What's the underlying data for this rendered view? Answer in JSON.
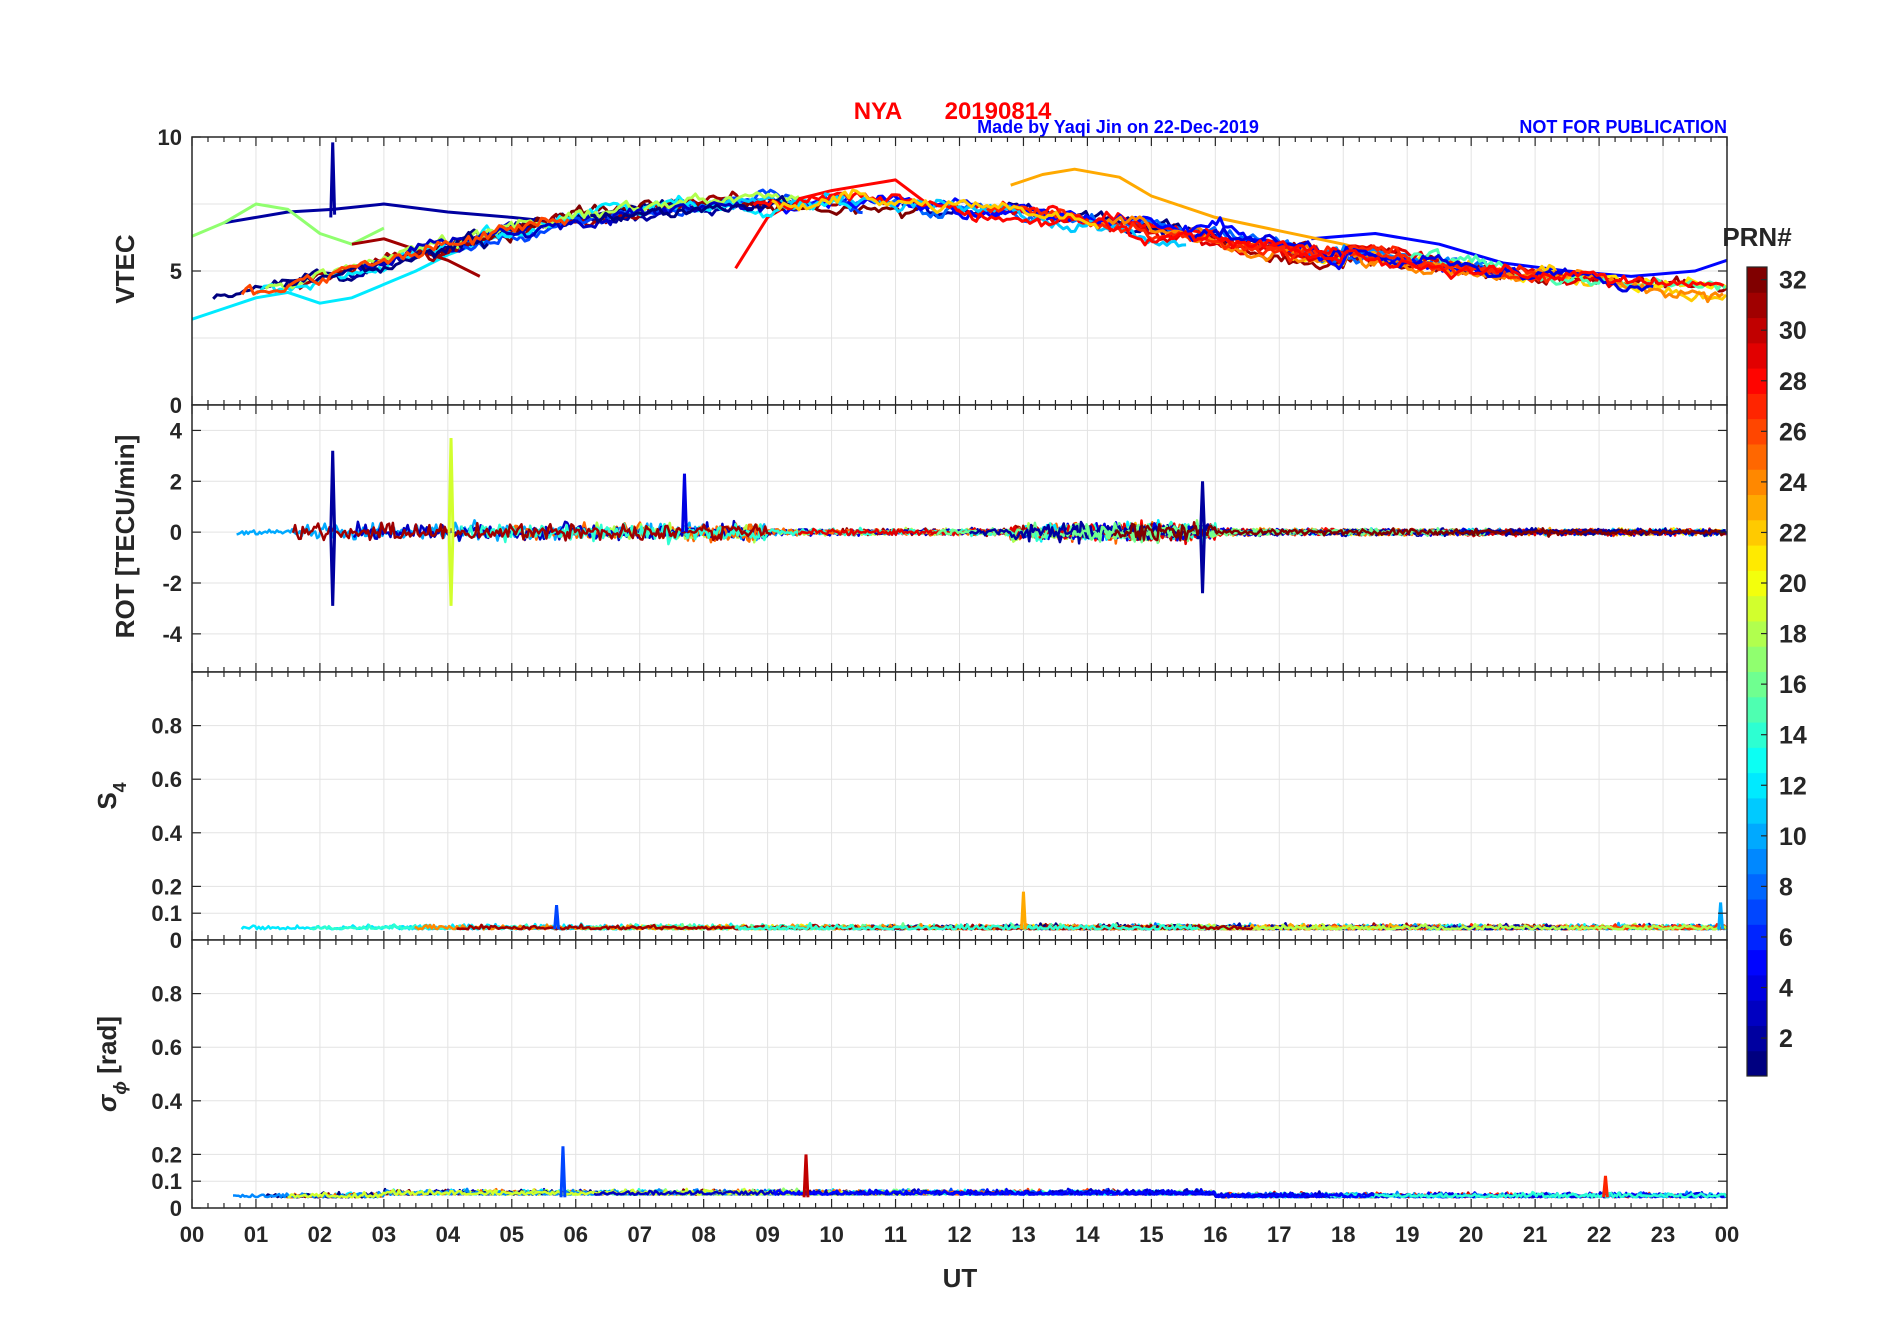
{
  "header": {
    "station": "NYA",
    "date": "20190814",
    "credit": "Made by Yaqi Jin on 22-Dec-2019",
    "notice": "NOT FOR PUBLICATION"
  },
  "colors": {
    "title": "#ff0000",
    "notice": "#0000ff",
    "grid": "#e3e3e3",
    "axis": "#262626"
  },
  "chart_data": {
    "type": "line",
    "x_axis": {
      "label": "UT",
      "range": [
        0,
        24
      ],
      "ticks": [
        0,
        1,
        2,
        3,
        4,
        5,
        6,
        7,
        8,
        9,
        10,
        11,
        12,
        13,
        14,
        15,
        16,
        17,
        18,
        19,
        20,
        21,
        22,
        23,
        24
      ],
      "tick_labels": [
        "00",
        "01",
        "02",
        "03",
        "04",
        "05",
        "06",
        "07",
        "08",
        "09",
        "10",
        "11",
        "12",
        "13",
        "14",
        "15",
        "16",
        "17",
        "18",
        "19",
        "20",
        "21",
        "22",
        "23",
        "00"
      ]
    },
    "panels": [
      {
        "name": "vtec",
        "ylabel": "VTEC",
        "ylim": [
          0,
          10
        ],
        "yticks": [
          0,
          5,
          10
        ],
        "grid_y": [
          2.5,
          5,
          7.5
        ]
      },
      {
        "name": "rot",
        "ylabel": "ROT [TECU/min]",
        "ylim": [
          -5.5,
          5
        ],
        "yticks": [
          -4,
          -2,
          0,
          2,
          4
        ],
        "grid_y": [
          -4,
          -2,
          0,
          2,
          4
        ]
      },
      {
        "name": "s4",
        "ylabel_main": "S",
        "ylabel_sub": "4",
        "ylim": [
          0,
          1
        ],
        "yticks": [
          0,
          0.1,
          0.2,
          0.4,
          0.6,
          0.8
        ],
        "ytick_labels": [
          "0",
          "0.1",
          "0.2",
          "0.4",
          "0.6",
          "0.8"
        ],
        "grid_y": [
          0.1,
          0.2,
          0.4,
          0.6,
          0.8
        ]
      },
      {
        "name": "sigma_phi",
        "ylabel_main": "σ",
        "ylabel_sub": "ϕ",
        "ylabel_unit": "[rad]",
        "ylim": [
          0,
          1
        ],
        "yticks": [
          0,
          0.1,
          0.2,
          0.4,
          0.6,
          0.8
        ],
        "ytick_labels": [
          "0",
          "0.1",
          "0.2",
          "0.4",
          "0.6",
          "0.8"
        ],
        "grid_y": [
          0.1,
          0.2,
          0.4,
          0.6,
          0.8
        ]
      }
    ],
    "colorbar": {
      "label": "PRN#",
      "range": [
        1,
        32
      ],
      "ticks": [
        2,
        4,
        6,
        8,
        10,
        12,
        14,
        16,
        18,
        20,
        22,
        24,
        26,
        28,
        30,
        32
      ],
      "colormap": "jet"
    },
    "series_sample": {
      "vtec": [
        {
          "prn": 2,
          "x": [
            0.5,
            1.5,
            2.2,
            3.0,
            4.0,
            5.0,
            5.8,
            6.5,
            7.5,
            8.0
          ],
          "y": [
            6.8,
            7.2,
            7.3,
            7.5,
            7.2,
            7.0,
            6.8,
            7.2,
            7.5,
            7.3
          ]
        },
        {
          "prn": 5,
          "x": [
            17.5,
            18.5,
            19.5,
            20.5,
            21.5,
            22.5,
            23.5,
            24.0
          ],
          "y": [
            6.2,
            6.4,
            6.0,
            5.3,
            5.0,
            4.8,
            5.0,
            5.4
          ]
        },
        {
          "prn": 12,
          "x": [
            0.0,
            0.5,
            1.0,
            1.5,
            2.0,
            2.5,
            3.0,
            3.5,
            4.0,
            5.0
          ],
          "y": [
            3.2,
            3.6,
            4.0,
            4.2,
            3.8,
            4.0,
            4.5,
            5.0,
            5.6,
            6.5
          ]
        },
        {
          "prn": 17,
          "x": [
            0.0,
            0.5,
            1.0,
            1.5,
            2.0,
            2.5,
            3.0
          ],
          "y": [
            6.3,
            6.8,
            7.5,
            7.3,
            6.4,
            6.0,
            6.6
          ]
        },
        {
          "prn": 23,
          "x": [
            12.8,
            13.3,
            13.8,
            14.5,
            15.0,
            16.0,
            17.0,
            18.0,
            19.0,
            19.7
          ],
          "y": [
            8.2,
            8.6,
            8.8,
            8.5,
            7.8,
            7.0,
            6.5,
            6.0,
            5.4,
            5.2
          ]
        },
        {
          "prn": 28,
          "x": [
            8.5,
            9.0,
            9.5,
            10.0,
            10.5,
            11.0,
            11.5
          ],
          "y": [
            5.1,
            7.0,
            7.7,
            8.0,
            8.2,
            8.4,
            7.5
          ]
        },
        {
          "prn": 31,
          "x": [
            2.5,
            3.0,
            3.5,
            4.0,
            4.5
          ],
          "y": [
            6.0,
            6.2,
            5.8,
            5.4,
            4.8
          ]
        }
      ],
      "rot_peaks": [
        {
          "prn": 2,
          "x": 2.2,
          "y": 3.2
        },
        {
          "prn": 2,
          "x": 2.2,
          "y": -2.9
        },
        {
          "prn": 19,
          "x": 4.05,
          "y": 3.7
        },
        {
          "prn": 19,
          "x": 4.05,
          "y": -2.9
        },
        {
          "prn": 4,
          "x": 7.7,
          "y": 2.3
        },
        {
          "prn": 2,
          "x": 15.8,
          "y": 2.0
        },
        {
          "prn": 2,
          "x": 15.8,
          "y": -2.4
        }
      ],
      "s4_peaks": [
        {
          "prn": 23,
          "x": 13.0,
          "y": 0.18
        },
        {
          "prn": 7,
          "x": 5.7,
          "y": 0.13
        },
        {
          "prn": 10,
          "x": 23.9,
          "y": 0.14
        }
      ],
      "sigma_peaks": [
        {
          "prn": 7,
          "x": 5.8,
          "y": 0.23
        },
        {
          "prn": 30,
          "x": 9.6,
          "y": 0.2
        },
        {
          "prn": 27,
          "x": 22.1,
          "y": 0.12
        }
      ]
    }
  }
}
